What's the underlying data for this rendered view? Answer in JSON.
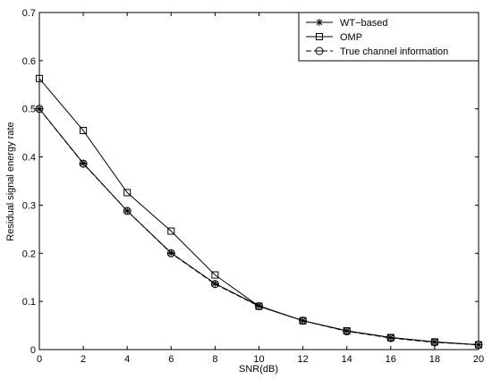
{
  "chart_data": {
    "type": "line",
    "xlabel": "SNR(dB)",
    "ylabel": "Residual signal energy rate",
    "xlim": [
      0,
      20
    ],
    "ylim": [
      0,
      0.7
    ],
    "x": [
      0,
      2,
      4,
      6,
      8,
      10,
      12,
      14,
      16,
      18,
      20
    ],
    "x_ticks": [
      "0",
      "2",
      "4",
      "6",
      "8",
      "10",
      "12",
      "14",
      "16",
      "18",
      "20"
    ],
    "y_ticks": [
      "0",
      "0.1",
      "0.2",
      "0.3",
      "0.4",
      "0.5",
      "0.6",
      "0.7"
    ],
    "grid": false,
    "legend_position": "top-right",
    "series": [
      {
        "name": "WT−based",
        "marker": "asterisk",
        "line_style": "solid",
        "color": "#000000",
        "values": [
          0.5,
          0.387,
          0.288,
          0.201,
          0.137,
          0.091,
          0.06,
          0.039,
          0.025,
          0.016,
          0.01
        ]
      },
      {
        "name": "OMP",
        "marker": "square",
        "line_style": "solid",
        "color": "#000000",
        "values": [
          0.563,
          0.455,
          0.326,
          0.246,
          0.155,
          0.09,
          0.06,
          0.039,
          0.025,
          0.016,
          0.01
        ]
      },
      {
        "name": "True channel information",
        "marker": "circle",
        "line_style": "dashed",
        "color": "#000000",
        "values": [
          0.5,
          0.386,
          0.288,
          0.2,
          0.136,
          0.09,
          0.06,
          0.038,
          0.024,
          0.015,
          0.01
        ]
      }
    ]
  }
}
